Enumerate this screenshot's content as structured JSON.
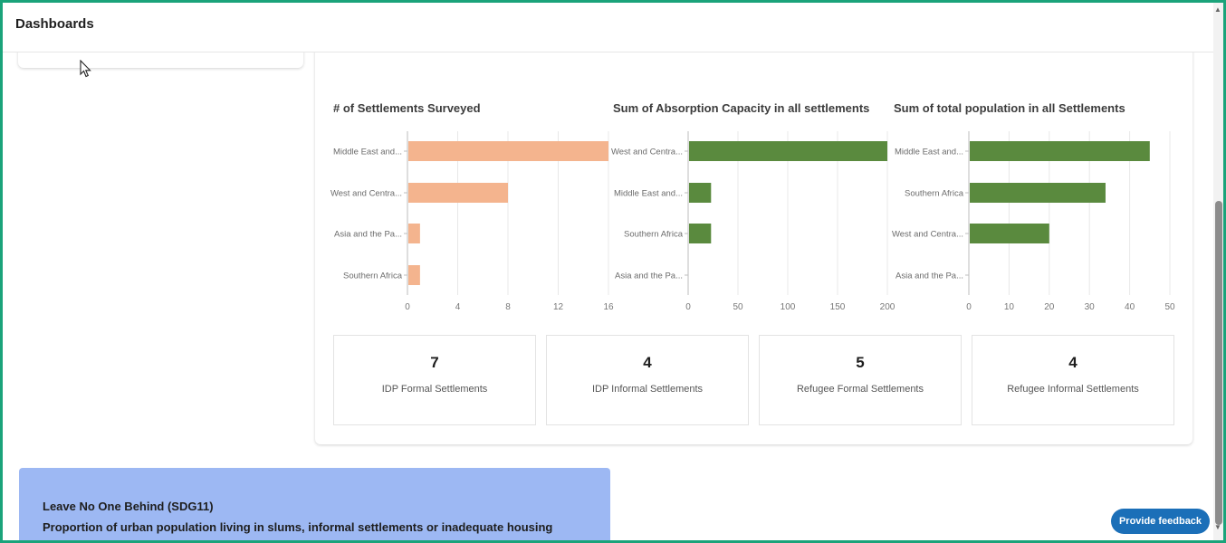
{
  "header": {
    "title": "Dashboards"
  },
  "charts": [
    {
      "title": "# of Settlements Surveyed",
      "color": "#f4b48e",
      "type": "bar",
      "categories": [
        "Middle East and...",
        "West and Centra...",
        "Asia and the Pa...",
        "Southern Africa"
      ],
      "values": [
        16,
        8,
        1,
        1
      ],
      "xlim": [
        0,
        16
      ],
      "ticks": [
        "0",
        "4",
        "8",
        "12",
        "16"
      ]
    },
    {
      "title": "Sum of Absorption Capacity in all settlements",
      "color": "#5a8a3e",
      "type": "bar",
      "categories": [
        "West and Centra...",
        "Middle East and...",
        "Southern Africa",
        "Asia and the Pa..."
      ],
      "values": [
        200,
        23,
        23,
        0
      ],
      "xlim": [
        0,
        200
      ],
      "ticks": [
        "0",
        "50",
        "100",
        "150",
        "200"
      ]
    },
    {
      "title": "Sum of total population in all Settlements",
      "color": "#5a8a3e",
      "type": "bar",
      "categories": [
        "Middle East and...",
        "Southern Africa",
        "West and Centra...",
        "Asia and the Pa..."
      ],
      "values": [
        45,
        34,
        20,
        0
      ],
      "xlim": [
        0,
        50
      ],
      "ticks": [
        "0",
        "10",
        "20",
        "30",
        "40",
        "50"
      ]
    }
  ],
  "stats": [
    {
      "value": "7",
      "label": "IDP Formal Settlements"
    },
    {
      "value": "4",
      "label": "IDP Informal Settlements"
    },
    {
      "value": "5",
      "label": "Refugee Formal Settlements"
    },
    {
      "value": "4",
      "label": "Refugee Informal Settlements"
    }
  ],
  "sdg_card": {
    "title": "Leave No One Behind (SDG11)",
    "subtitle": "Proportion of urban population living in slums, informal settlements or inadequate housing"
  },
  "feedback": {
    "label": "Provide feedback"
  }
}
